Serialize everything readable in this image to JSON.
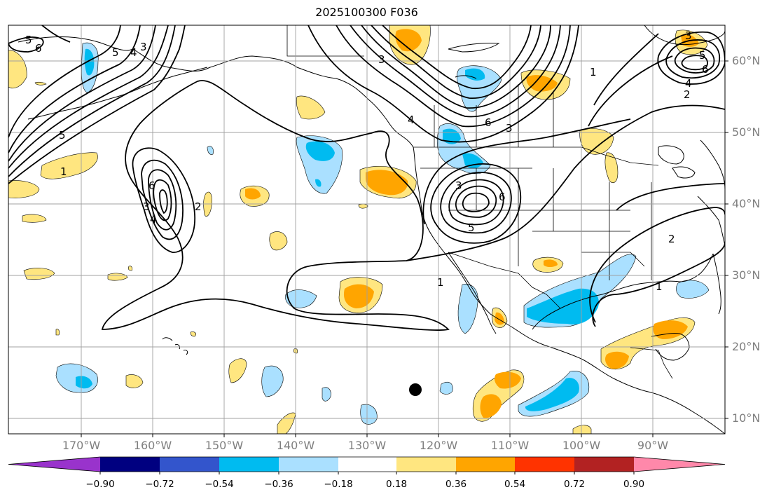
{
  "title": "2025100300 F036",
  "lat_labels": [
    "60°N",
    "50°N",
    "40°N",
    "30°N",
    "20°N",
    "10°N"
  ],
  "lon_labels": [
    "170°W",
    "160°W",
    "150°W",
    "140°W",
    "130°W",
    "120°W",
    "110°W",
    "100°W",
    "90°W"
  ],
  "colorbar": {
    "ticks": [
      "−0.90",
      "−0.72",
      "−0.54",
      "−0.36",
      "−0.18",
      "0.18",
      "0.36",
      "0.54",
      "0.72",
      "0.90"
    ],
    "colors": [
      "#9933cc",
      "#000080",
      "#3355cc",
      "#00bbf0",
      "#aae0ff",
      "#ffffff",
      "#ffe680",
      "#ffa500",
      "#ff3300",
      "#b22222",
      "#ff88aa"
    ]
  },
  "contour_labels": [
    "1",
    "2",
    "3",
    "4",
    "5",
    "6"
  ],
  "colors": {
    "light_blue": "#aae0ff",
    "cyan": "#00bbf0",
    "light_yellow": "#ffe680",
    "orange": "#ffa500",
    "grid": "#a0a0a0"
  }
}
